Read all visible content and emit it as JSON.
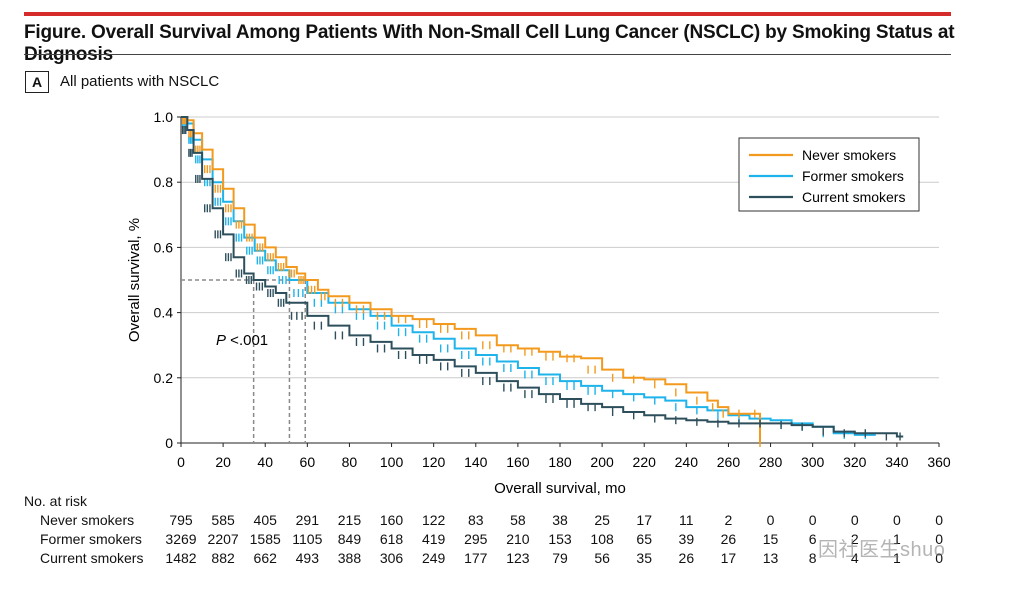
{
  "colors": {
    "never": "#f39a1e",
    "former": "#1eb3ea",
    "current": "#2d4f5c",
    "accent_rule": "#d62b2b",
    "grid": "#cccccc",
    "reference": "#8a8a8a"
  },
  "figure": {
    "title": "Figure. Overall Survival Among Patients With Non-Small Cell Lung Cancer (NSCLC) by Smoking Status at Diagnosis",
    "panel_letter": "A",
    "panel_title": "All patients with NSCLC"
  },
  "chart_data": {
    "type": "line",
    "subtype": "kaplan-meier step curves with censor marks",
    "xlabel": "Overall survival, mo",
    "ylabel": "Overall survival, %",
    "xlim": [
      0,
      360
    ],
    "ylim": [
      0,
      1.0
    ],
    "x_ticks": [
      "0",
      "20",
      "40",
      "60",
      "80",
      "100",
      "120",
      "140",
      "160",
      "180",
      "200",
      "220",
      "240",
      "260",
      "280",
      "300",
      "320",
      "340",
      "360"
    ],
    "y_ticks": [
      "0",
      "0.2",
      "0.4",
      "0.6",
      "0.8",
      "1.0"
    ],
    "grid": "horizontal",
    "legend_position": "top-right",
    "annotation": {
      "p_label": "P",
      "p_value": " <.001",
      "at": [
        17,
        0.31
      ]
    },
    "median_reference": {
      "y": 0.5,
      "medians_mo": [
        34.5,
        51.5,
        59
      ]
    },
    "series": [
      {
        "name": "Never smokers",
        "key": "never",
        "points": [
          [
            0,
            1.0
          ],
          [
            3,
            0.99
          ],
          [
            6,
            0.95
          ],
          [
            10,
            0.9
          ],
          [
            15,
            0.84
          ],
          [
            20,
            0.78
          ],
          [
            25,
            0.72
          ],
          [
            30,
            0.67
          ],
          [
            35,
            0.63
          ],
          [
            40,
            0.6
          ],
          [
            45,
            0.57
          ],
          [
            50,
            0.54
          ],
          [
            55,
            0.52
          ],
          [
            59,
            0.5
          ],
          [
            65,
            0.47
          ],
          [
            70,
            0.45
          ],
          [
            80,
            0.43
          ],
          [
            90,
            0.41
          ],
          [
            100,
            0.39
          ],
          [
            110,
            0.38
          ],
          [
            120,
            0.365
          ],
          [
            130,
            0.35
          ],
          [
            140,
            0.33
          ],
          [
            150,
            0.3
          ],
          [
            160,
            0.29
          ],
          [
            170,
            0.28
          ],
          [
            180,
            0.265
          ],
          [
            190,
            0.26
          ],
          [
            200,
            0.225
          ],
          [
            210,
            0.2
          ],
          [
            220,
            0.195
          ],
          [
            230,
            0.18
          ],
          [
            240,
            0.155
          ],
          [
            250,
            0.13
          ],
          [
            255,
            0.11
          ],
          [
            260,
            0.09
          ],
          [
            270,
            0.09
          ],
          [
            275,
            0.09
          ],
          [
            275,
            0.0
          ]
        ]
      },
      {
        "name": "Former smokers",
        "key": "former",
        "points": [
          [
            0,
            1.0
          ],
          [
            3,
            0.98
          ],
          [
            6,
            0.93
          ],
          [
            10,
            0.87
          ],
          [
            15,
            0.8
          ],
          [
            20,
            0.74
          ],
          [
            25,
            0.68
          ],
          [
            30,
            0.63
          ],
          [
            35,
            0.59
          ],
          [
            40,
            0.56
          ],
          [
            45,
            0.53
          ],
          [
            51.5,
            0.5
          ],
          [
            60,
            0.46
          ],
          [
            70,
            0.43
          ],
          [
            80,
            0.41
          ],
          [
            90,
            0.39
          ],
          [
            100,
            0.36
          ],
          [
            110,
            0.34
          ],
          [
            120,
            0.32
          ],
          [
            130,
            0.29
          ],
          [
            140,
            0.27
          ],
          [
            150,
            0.25
          ],
          [
            160,
            0.23
          ],
          [
            170,
            0.21
          ],
          [
            180,
            0.19
          ],
          [
            190,
            0.175
          ],
          [
            200,
            0.16
          ],
          [
            210,
            0.15
          ],
          [
            220,
            0.14
          ],
          [
            230,
            0.13
          ],
          [
            240,
            0.11
          ],
          [
            250,
            0.1
          ],
          [
            260,
            0.085
          ],
          [
            270,
            0.075
          ],
          [
            280,
            0.07
          ],
          [
            290,
            0.06
          ],
          [
            300,
            0.05
          ],
          [
            310,
            0.03
          ],
          [
            320,
            0.025
          ],
          [
            330,
            0.025
          ]
        ]
      },
      {
        "name": "Current smokers",
        "key": "current",
        "points": [
          [
            0,
            1.0
          ],
          [
            3,
            0.96
          ],
          [
            6,
            0.89
          ],
          [
            10,
            0.81
          ],
          [
            15,
            0.72
          ],
          [
            20,
            0.64
          ],
          [
            25,
            0.57
          ],
          [
            30,
            0.52
          ],
          [
            34.5,
            0.5
          ],
          [
            40,
            0.48
          ],
          [
            45,
            0.46
          ],
          [
            50,
            0.43
          ],
          [
            60,
            0.39
          ],
          [
            70,
            0.36
          ],
          [
            80,
            0.33
          ],
          [
            90,
            0.31
          ],
          [
            100,
            0.29
          ],
          [
            110,
            0.27
          ],
          [
            120,
            0.255
          ],
          [
            130,
            0.235
          ],
          [
            140,
            0.215
          ],
          [
            150,
            0.19
          ],
          [
            160,
            0.17
          ],
          [
            170,
            0.15
          ],
          [
            180,
            0.135
          ],
          [
            190,
            0.12
          ],
          [
            200,
            0.11
          ],
          [
            210,
            0.095
          ],
          [
            220,
            0.085
          ],
          [
            230,
            0.075
          ],
          [
            240,
            0.07
          ],
          [
            250,
            0.065
          ],
          [
            260,
            0.06
          ],
          [
            270,
            0.06
          ],
          [
            280,
            0.06
          ],
          [
            290,
            0.055
          ],
          [
            300,
            0.05
          ],
          [
            310,
            0.035
          ],
          [
            320,
            0.03
          ],
          [
            330,
            0.03
          ],
          [
            340,
            0.02
          ],
          [
            343,
            0.02
          ]
        ]
      }
    ]
  },
  "risk_table": {
    "heading": "No. at risk",
    "times": [
      0,
      20,
      40,
      60,
      80,
      100,
      120,
      140,
      160,
      180,
      200,
      220,
      240,
      260,
      280,
      300,
      320,
      340,
      360
    ],
    "rows": [
      {
        "label": "Never smokers",
        "values": [
          "795",
          "585",
          "405",
          "291",
          "215",
          "160",
          "122",
          "83",
          "58",
          "38",
          "25",
          "17",
          "11",
          "2",
          "0",
          "0",
          "0",
          "0",
          "0"
        ]
      },
      {
        "label": "Former smokers",
        "values": [
          "3269",
          "2207",
          "1585",
          "1105",
          "849",
          "618",
          "419",
          "295",
          "210",
          "153",
          "108",
          "65",
          "39",
          "26",
          "15",
          "6",
          "2",
          "1",
          "0"
        ]
      },
      {
        "label": "Current smokers",
        "values": [
          "1482",
          "882",
          "662",
          "493",
          "388",
          "306",
          "249",
          "177",
          "123",
          "79",
          "56",
          "35",
          "26",
          "17",
          "13",
          "8",
          "4",
          "1",
          "0"
        ]
      }
    ]
  },
  "watermark": "因社医生shuo"
}
